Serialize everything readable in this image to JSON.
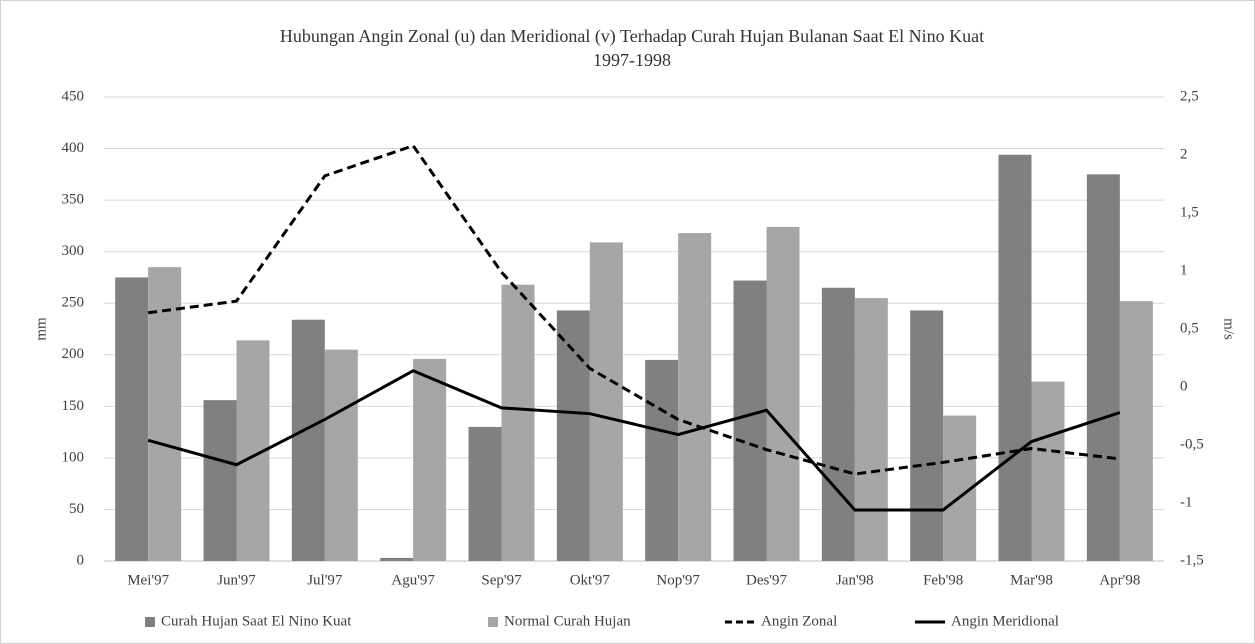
{
  "chart_data": {
    "type": "bar-line",
    "title": "Hubungan Angin Zonal (u) dan Meridional (v) Terhadap Curah Hujan Bulanan Saat El Nino Kuat",
    "subtitle": "1997-1998",
    "y_label": "mm",
    "y2_label": "m/s",
    "categories": [
      "Mei'97",
      "Jun'97",
      "Jul'97",
      "Agu'97",
      "Sep'97",
      "Okt'97",
      "Nop'97",
      "Des'97",
      "Jan'98",
      "Feb'98",
      "Mar'98",
      "Apr'98"
    ],
    "series": [
      {
        "name": "Curah Hujan Saat El Nino Kuat",
        "kind": "bar",
        "color": "#808080",
        "values": [
          275,
          156,
          234,
          3,
          130,
          243,
          195,
          272,
          265,
          243,
          394,
          375
        ]
      },
      {
        "name": "Normal Curah Hujan",
        "kind": "bar",
        "color": "#a6a6a6",
        "values": [
          285,
          214,
          205,
          196,
          268,
          309,
          318,
          324,
          255,
          141,
          174,
          252
        ]
      },
      {
        "name": "Angin Zonal",
        "kind": "line",
        "axis": "y2",
        "color": "#000000",
        "dashed": true,
        "values": [
          0.64,
          0.74,
          1.82,
          2.08,
          0.99,
          0.16,
          -0.28,
          -0.54,
          -0.75,
          -0.65,
          -0.53,
          -0.62
        ]
      },
      {
        "name": "Angin Meridional",
        "kind": "line",
        "axis": "y2",
        "color": "#000000",
        "dashed": false,
        "values": [
          -0.46,
          -0.67,
          -0.28,
          0.14,
          -0.18,
          -0.23,
          -0.41,
          -0.2,
          -1.06,
          -1.06,
          -0.47,
          -0.22
        ]
      }
    ],
    "ylim": [
      0,
      450
    ],
    "yticks": [
      0,
      50,
      100,
      150,
      200,
      250,
      300,
      350,
      400,
      450
    ],
    "y2lim": [
      -1.5,
      2.5
    ],
    "y2ticks": [
      {
        "value": -1.5,
        "label": "-1,5"
      },
      -1,
      {
        "value": -0.5,
        "label": "-0,5"
      },
      0,
      {
        "value": 0.5,
        "label": "0,5"
      },
      1,
      {
        "value": 1.5,
        "label": "1,5"
      },
      2,
      {
        "value": 2.5,
        "label": "2,5"
      }
    ],
    "grid": true,
    "legend": "bottom"
  }
}
